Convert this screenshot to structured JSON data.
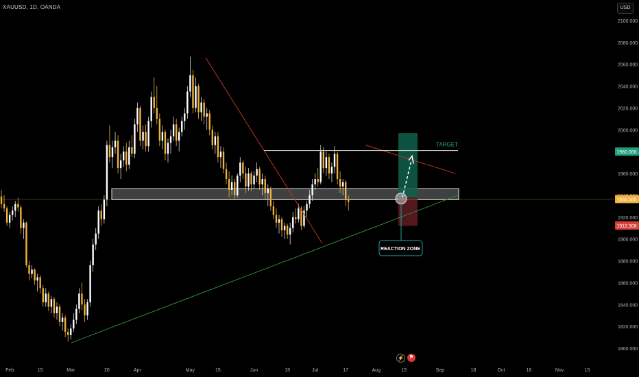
{
  "header": {
    "symbol_title": "XAUUSD, 1D, OANDA",
    "currency": "USD"
  },
  "footer_icons": {
    "lightning": "lightning-icon",
    "flag": "flag-icon"
  },
  "colors": {
    "background": "#000000",
    "candle_up": "#ffffff",
    "candle_down": "#f0b13a",
    "wick": "#b9b9b9",
    "support_line": "#2e8b3a",
    "resistance_line": "#c0312b",
    "target_zone": "#0f5f4c",
    "stop_zone": "#5a1b20",
    "price_tag_current": "#f0b13a",
    "price_tag_target": "#1e9e7a",
    "price_tag_stop": "#d9413a"
  },
  "chart_data": {
    "type": "candlestick",
    "ylim": [
      1795,
      2113
    ],
    "y_ticks": [
      "2100.000",
      "2080.000",
      "2060.000",
      "2040.000",
      "2020.000",
      "2000.000",
      "1980.000",
      "1960.000",
      "1940.000",
      "1920.000",
      "1900.000",
      "1880.000",
      "1860.000",
      "1840.000",
      "1820.000",
      "1800.000"
    ],
    "y_tick_values": [
      2100,
      2080,
      2060,
      2040,
      2020,
      2000,
      1980,
      1960,
      1940,
      1920,
      1900,
      1880,
      1860,
      1840,
      1820,
      1800
    ],
    "x_ticks": [
      "Feb",
      "15",
      "Mar",
      "20",
      "Apr",
      "May",
      "15",
      "Jun",
      "19",
      "Jul",
      "17",
      "Aug",
      "15",
      "Sep",
      "18",
      "Oct",
      "16",
      "Nov",
      "15"
    ],
    "x_tick_index": [
      3,
      14,
      25,
      38,
      49,
      68,
      78,
      91,
      103,
      113,
      124,
      135,
      145,
      158,
      170,
      180,
      190,
      201,
      211
    ],
    "candles": [
      [
        1939,
        1945,
        1928,
        1932
      ],
      [
        1932,
        1940,
        1925,
        1928
      ],
      [
        1928,
        1930,
        1912,
        1915
      ],
      [
        1915,
        1925,
        1910,
        1922
      ],
      [
        1922,
        1930,
        1917,
        1926
      ],
      [
        1926,
        1935,
        1920,
        1932
      ],
      [
        1932,
        1938,
        1925,
        1929
      ],
      [
        1929,
        1931,
        1905,
        1910
      ],
      [
        1910,
        1918,
        1900,
        1915
      ],
      [
        1915,
        1916,
        1874,
        1876
      ],
      [
        1876,
        1880,
        1862,
        1868
      ],
      [
        1868,
        1876,
        1864,
        1872
      ],
      [
        1872,
        1873,
        1858,
        1862
      ],
      [
        1862,
        1868,
        1852,
        1865
      ],
      [
        1865,
        1867,
        1850,
        1855
      ],
      [
        1855,
        1858,
        1838,
        1842
      ],
      [
        1842,
        1855,
        1838,
        1850
      ],
      [
        1850,
        1852,
        1834,
        1838
      ],
      [
        1838,
        1848,
        1832,
        1845
      ],
      [
        1845,
        1847,
        1828,
        1832
      ],
      [
        1832,
        1842,
        1826,
        1838
      ],
      [
        1838,
        1840,
        1820,
        1824
      ],
      [
        1824,
        1832,
        1816,
        1828
      ],
      [
        1828,
        1830,
        1810,
        1815
      ],
      [
        1815,
        1818,
        1806,
        1812
      ],
      [
        1812,
        1822,
        1808,
        1818
      ],
      [
        1818,
        1832,
        1815,
        1826
      ],
      [
        1826,
        1840,
        1822,
        1836
      ],
      [
        1836,
        1855,
        1832,
        1850
      ],
      [
        1850,
        1860,
        1835,
        1840
      ],
      [
        1840,
        1845,
        1824,
        1830
      ],
      [
        1830,
        1845,
        1826,
        1842
      ],
      [
        1842,
        1880,
        1838,
        1876
      ],
      [
        1876,
        1900,
        1870,
        1895
      ],
      [
        1895,
        1910,
        1890,
        1905
      ],
      [
        1905,
        1930,
        1900,
        1926
      ],
      [
        1926,
        1932,
        1912,
        1918
      ],
      [
        1918,
        1940,
        1914,
        1936
      ],
      [
        1936,
        1990,
        1930,
        1986
      ],
      [
        1986,
        2004,
        1970,
        1975
      ],
      [
        1975,
        1990,
        1965,
        1984
      ],
      [
        1984,
        1998,
        1978,
        1990
      ],
      [
        1990,
        1995,
        1960,
        1965
      ],
      [
        1965,
        1978,
        1955,
        1972
      ],
      [
        1972,
        1985,
        1966,
        1980
      ],
      [
        1980,
        1988,
        1962,
        1968
      ],
      [
        1968,
        1990,
        1964,
        1984
      ],
      [
        1984,
        1995,
        1975,
        1978
      ],
      [
        1978,
        2010,
        1974,
        2005
      ],
      [
        2005,
        2025,
        1998,
        2020
      ],
      [
        2020,
        2022,
        1985,
        1990
      ],
      [
        1990,
        2004,
        1982,
        1998
      ],
      [
        1998,
        2005,
        1980,
        1985
      ],
      [
        1985,
        2012,
        1980,
        2008
      ],
      [
        2008,
        2035,
        2002,
        2030
      ],
      [
        2030,
        2048,
        2015,
        2020
      ],
      [
        2020,
        2040,
        2005,
        2010
      ],
      [
        2010,
        2015,
        1985,
        1990
      ],
      [
        1990,
        2004,
        1982,
        1998
      ],
      [
        1998,
        2000,
        1972,
        1978
      ],
      [
        1978,
        1992,
        1970,
        1988
      ],
      [
        1988,
        2000,
        1978,
        1994
      ],
      [
        1994,
        2012,
        1990,
        2005
      ],
      [
        2005,
        2010,
        1985,
        1990
      ],
      [
        1990,
        2002,
        1980,
        1998
      ],
      [
        1998,
        2012,
        1994,
        2008
      ],
      [
        2008,
        2020,
        2000,
        2015
      ],
      [
        2015,
        2040,
        2010,
        2035
      ],
      [
        2035,
        2067,
        2030,
        2050
      ],
      [
        2050,
        2055,
        2015,
        2020
      ],
      [
        2020,
        2048,
        2016,
        2040
      ],
      [
        2040,
        2042,
        2010,
        2016
      ],
      [
        2016,
        2030,
        2008,
        2025
      ],
      [
        2025,
        2028,
        2005,
        2012
      ],
      [
        2012,
        2020,
        2000,
        2015
      ],
      [
        2015,
        2018,
        1995,
        2000
      ],
      [
        2000,
        2004,
        1982,
        1986
      ],
      [
        1986,
        1998,
        1978,
        1994
      ],
      [
        1994,
        1998,
        1970,
        1975
      ],
      [
        1975,
        1985,
        1965,
        1980
      ],
      [
        1980,
        1984,
        1960,
        1964
      ],
      [
        1964,
        1970,
        1950,
        1955
      ],
      [
        1955,
        1962,
        1938,
        1945
      ],
      [
        1945,
        1958,
        1940,
        1952
      ],
      [
        1952,
        1955,
        1936,
        1940
      ],
      [
        1940,
        1960,
        1938,
        1958
      ],
      [
        1958,
        1975,
        1952,
        1970
      ],
      [
        1970,
        1972,
        1955,
        1960
      ],
      [
        1960,
        1966,
        1942,
        1948
      ],
      [
        1948,
        1965,
        1944,
        1960
      ],
      [
        1960,
        1962,
        1944,
        1950
      ],
      [
        1950,
        1962,
        1946,
        1958
      ],
      [
        1958,
        1970,
        1952,
        1964
      ],
      [
        1964,
        1966,
        1945,
        1950
      ],
      [
        1950,
        1960,
        1940,
        1955
      ],
      [
        1955,
        1958,
        1936,
        1942
      ],
      [
        1942,
        1950,
        1930,
        1946
      ],
      [
        1946,
        1948,
        1926,
        1930
      ],
      [
        1930,
        1935,
        1918,
        1922
      ],
      [
        1922,
        1928,
        1910,
        1915
      ],
      [
        1915,
        1922,
        1905,
        1918
      ],
      [
        1918,
        1920,
        1902,
        1908
      ],
      [
        1908,
        1915,
        1900,
        1912
      ],
      [
        1912,
        1914,
        1900,
        1904
      ],
      [
        1904,
        1915,
        1895,
        1910
      ],
      [
        1910,
        1925,
        1906,
        1920
      ],
      [
        1920,
        1928,
        1914,
        1918
      ],
      [
        1918,
        1932,
        1915,
        1928
      ],
      [
        1928,
        1930,
        1908,
        1912
      ],
      [
        1912,
        1930,
        1910,
        1926
      ],
      [
        1926,
        1935,
        1920,
        1932
      ],
      [
        1932,
        1945,
        1928,
        1940
      ],
      [
        1940,
        1955,
        1935,
        1950
      ],
      [
        1950,
        1960,
        1945,
        1955
      ],
      [
        1955,
        1965,
        1948,
        1952
      ],
      [
        1952,
        1986,
        1950,
        1980
      ],
      [
        1980,
        1984,
        1960,
        1965
      ],
      [
        1965,
        1980,
        1958,
        1975
      ],
      [
        1975,
        1978,
        1955,
        1960
      ],
      [
        1960,
        1970,
        1952,
        1966
      ],
      [
        1966,
        1985,
        1960,
        1978
      ],
      [
        1978,
        1980,
        1950,
        1955
      ],
      [
        1955,
        1962,
        1942,
        1948
      ],
      [
        1948,
        1955,
        1940,
        1952
      ],
      [
        1952,
        1954,
        1930,
        1936
      ],
      [
        1936,
        1940,
        1926,
        1934
      ]
    ],
    "annotations": {
      "target_label": "TARGET",
      "reaction_zone_label": "REACTION ZONE",
      "target_price": 1980,
      "resistance_top": 1981,
      "demand_zone": [
        1936,
        1946
      ],
      "current_price_tag": "1936.585",
      "target_price_tag": "1980.066",
      "stop_price_tag": "1912.308"
    }
  }
}
